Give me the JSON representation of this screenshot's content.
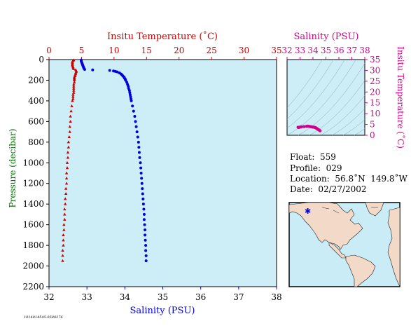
{
  "colors": {
    "temperature": "#cc0000",
    "salinity": "#0000dd",
    "ts": "#d4008a",
    "panel_bg": "#cdeef7",
    "axis": "#000000",
    "map_land": "#f3d9c8",
    "map_water": "#c9ecf6"
  },
  "chart_data": [
    {
      "type": "scatter",
      "name_x_top": "Insitu Temperature (˚C)",
      "xlabel_bottom": "Salinity (PSU)",
      "ylabel": "Pressure (decibar)",
      "ylim": [
        0,
        2200
      ],
      "y_ticks": [
        0,
        200,
        400,
        600,
        800,
        1000,
        1200,
        1400,
        1600,
        1800,
        2000,
        2200
      ],
      "temp_xlim": [
        0,
        35
      ],
      "temp_ticks": [
        0,
        5,
        10,
        15,
        20,
        25,
        30,
        35
      ],
      "sal_xlim": [
        32,
        38
      ],
      "sal_ticks": [
        32,
        33,
        34,
        35,
        36,
        37,
        38
      ],
      "temperature_profile": {
        "pressure": [
          5,
          10,
          20,
          30,
          40,
          50,
          60,
          70,
          80,
          90,
          100,
          110,
          120,
          130,
          140,
          150,
          160,
          170,
          180,
          190,
          200,
          220,
          240,
          260,
          280,
          300,
          320,
          340,
          360,
          380,
          400,
          450,
          500,
          550,
          600,
          650,
          700,
          750,
          800,
          850,
          900,
          950,
          1000,
          1050,
          1100,
          1150,
          1200,
          1250,
          1300,
          1350,
          1400,
          1450,
          1500,
          1550,
          1600,
          1650,
          1700,
          1750,
          1800,
          1850,
          1900,
          1950
        ],
        "temperature": [
          3.8,
          3.7,
          3.6,
          3.6,
          3.6,
          3.6,
          3.6,
          3.7,
          3.7,
          3.8,
          4.1,
          4.2,
          4.2,
          4.1,
          4.1,
          4.0,
          4.0,
          3.9,
          3.9,
          3.9,
          3.9,
          3.9,
          3.8,
          3.8,
          3.8,
          3.8,
          3.8,
          3.7,
          3.7,
          3.7,
          3.6,
          3.5,
          3.4,
          3.3,
          3.3,
          3.2,
          3.2,
          3.1,
          3.0,
          3.0,
          2.9,
          2.9,
          2.8,
          2.8,
          2.7,
          2.7,
          2.7,
          2.6,
          2.6,
          2.5,
          2.5,
          2.4,
          2.4,
          2.4,
          2.3,
          2.3,
          2.2,
          2.2,
          2.2,
          2.1,
          2.1,
          2.1
        ]
      },
      "salinity_profile": {
        "pressure": [
          5,
          15,
          25,
          35,
          45,
          55,
          65,
          75,
          85,
          95,
          100,
          105,
          110,
          115,
          120,
          130,
          140,
          150,
          160,
          170,
          180,
          190,
          200,
          220,
          240,
          260,
          280,
          300,
          320,
          340,
          360,
          380,
          400,
          450,
          500,
          550,
          600,
          650,
          700,
          750,
          800,
          850,
          900,
          950,
          1000,
          1050,
          1100,
          1150,
          1200,
          1250,
          1300,
          1350,
          1400,
          1450,
          1500,
          1550,
          1600,
          1650,
          1700,
          1750,
          1800,
          1850,
          1900,
          1950
        ],
        "salinity": [
          32.85,
          32.85,
          32.86,
          32.87,
          32.88,
          32.89,
          32.9,
          32.91,
          32.92,
          32.94,
          33.15,
          33.6,
          33.7,
          33.75,
          33.8,
          33.86,
          33.9,
          33.93,
          33.95,
          33.98,
          33.99,
          34.01,
          34.02,
          34.05,
          34.07,
          34.09,
          34.1,
          34.12,
          34.13,
          34.14,
          34.15,
          34.16,
          34.17,
          34.2,
          34.23,
          34.26,
          34.28,
          34.3,
          34.32,
          34.34,
          34.36,
          34.37,
          34.38,
          34.39,
          34.41,
          34.42,
          34.43,
          34.44,
          34.45,
          34.46,
          34.47,
          34.48,
          34.49,
          34.5,
          34.51,
          34.51,
          34.52,
          34.53,
          34.53,
          34.54,
          34.55,
          34.55,
          34.56,
          34.56
        ]
      }
    },
    {
      "type": "scatter",
      "xlabel": "Salinity (PSU)",
      "ylabel": "Insitu Temperature (˚C)",
      "xlim": [
        32,
        38
      ],
      "x_ticks": [
        32,
        33,
        34,
        35,
        36,
        37,
        38
      ],
      "ylim": [
        0,
        35
      ],
      "y_ticks": [
        0,
        5,
        10,
        15,
        20,
        25,
        30,
        35
      ],
      "points_salinity": [
        32.85,
        32.9,
        33.0,
        33.1,
        33.3,
        33.5,
        33.6,
        33.7,
        33.8,
        33.9,
        34.0,
        34.1,
        34.15,
        34.2,
        34.25,
        34.3,
        34.35,
        34.4,
        34.45,
        34.5,
        34.55
      ],
      "points_temperature": [
        3.7,
        3.6,
        3.8,
        3.9,
        4.0,
        4.1,
        4.2,
        4.1,
        4.0,
        3.9,
        3.8,
        3.7,
        3.6,
        3.5,
        3.3,
        3.1,
        2.9,
        2.7,
        2.5,
        2.3,
        2.1
      ]
    }
  ],
  "info": {
    "float": "Float:  559",
    "profile": "Profile:  029",
    "location": "Location:  56.8˚N  149.8˚W",
    "date": "Date:  02/27/2002"
  },
  "footer_id": "1014814545.0588276"
}
